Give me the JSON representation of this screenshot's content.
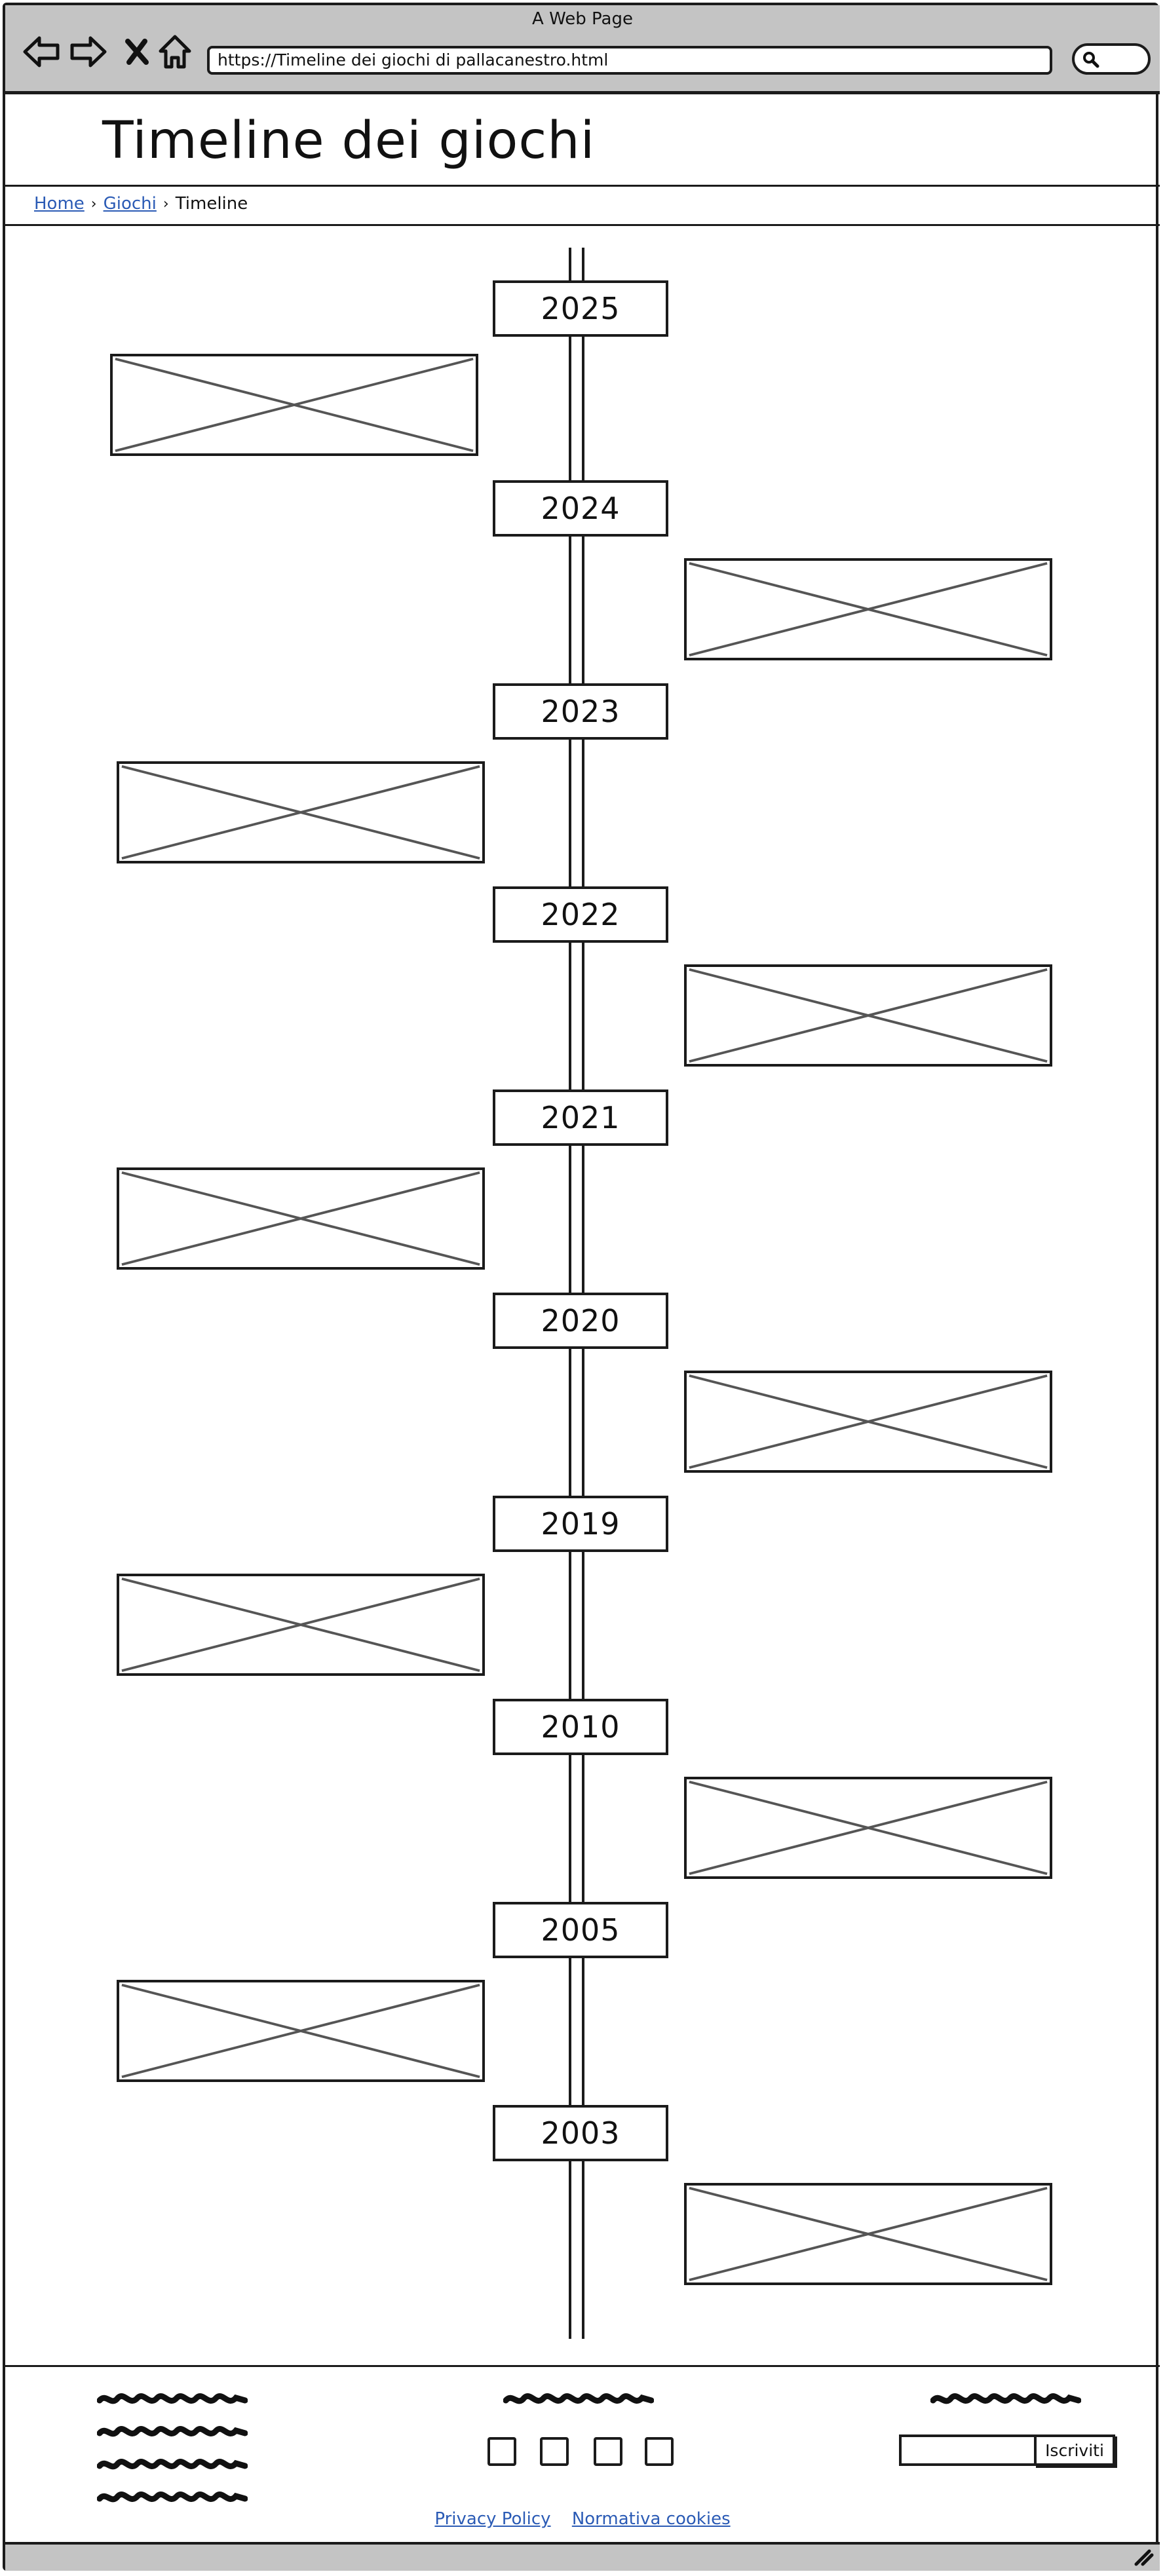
{
  "window": {
    "title": "A Web Page",
    "url": "https://Timeline dei giochi di pallacanestro.html"
  },
  "page": {
    "title": "Timeline dei giochi"
  },
  "breadcrumb": {
    "items": [
      "Home",
      "Giochi"
    ],
    "current": "Timeline"
  },
  "timeline": {
    "years": [
      "2025",
      "2024",
      "2023",
      "2022",
      "2021",
      "2020",
      "2019",
      "2010",
      "2005",
      "2003"
    ],
    "image_sides": [
      "left",
      "right",
      "left",
      "right",
      "left",
      "right",
      "left",
      "right",
      "left",
      "right"
    ]
  },
  "footer": {
    "subscribe_label": "Iscriviti",
    "links": [
      "Privacy Policy",
      "Normativa cookies"
    ]
  },
  "icons": {
    "back": "back-arrow-icon",
    "forward": "forward-arrow-icon",
    "stop": "close-icon",
    "home": "home-icon",
    "search": "search-icon",
    "resize": "resize-grip-icon"
  }
}
